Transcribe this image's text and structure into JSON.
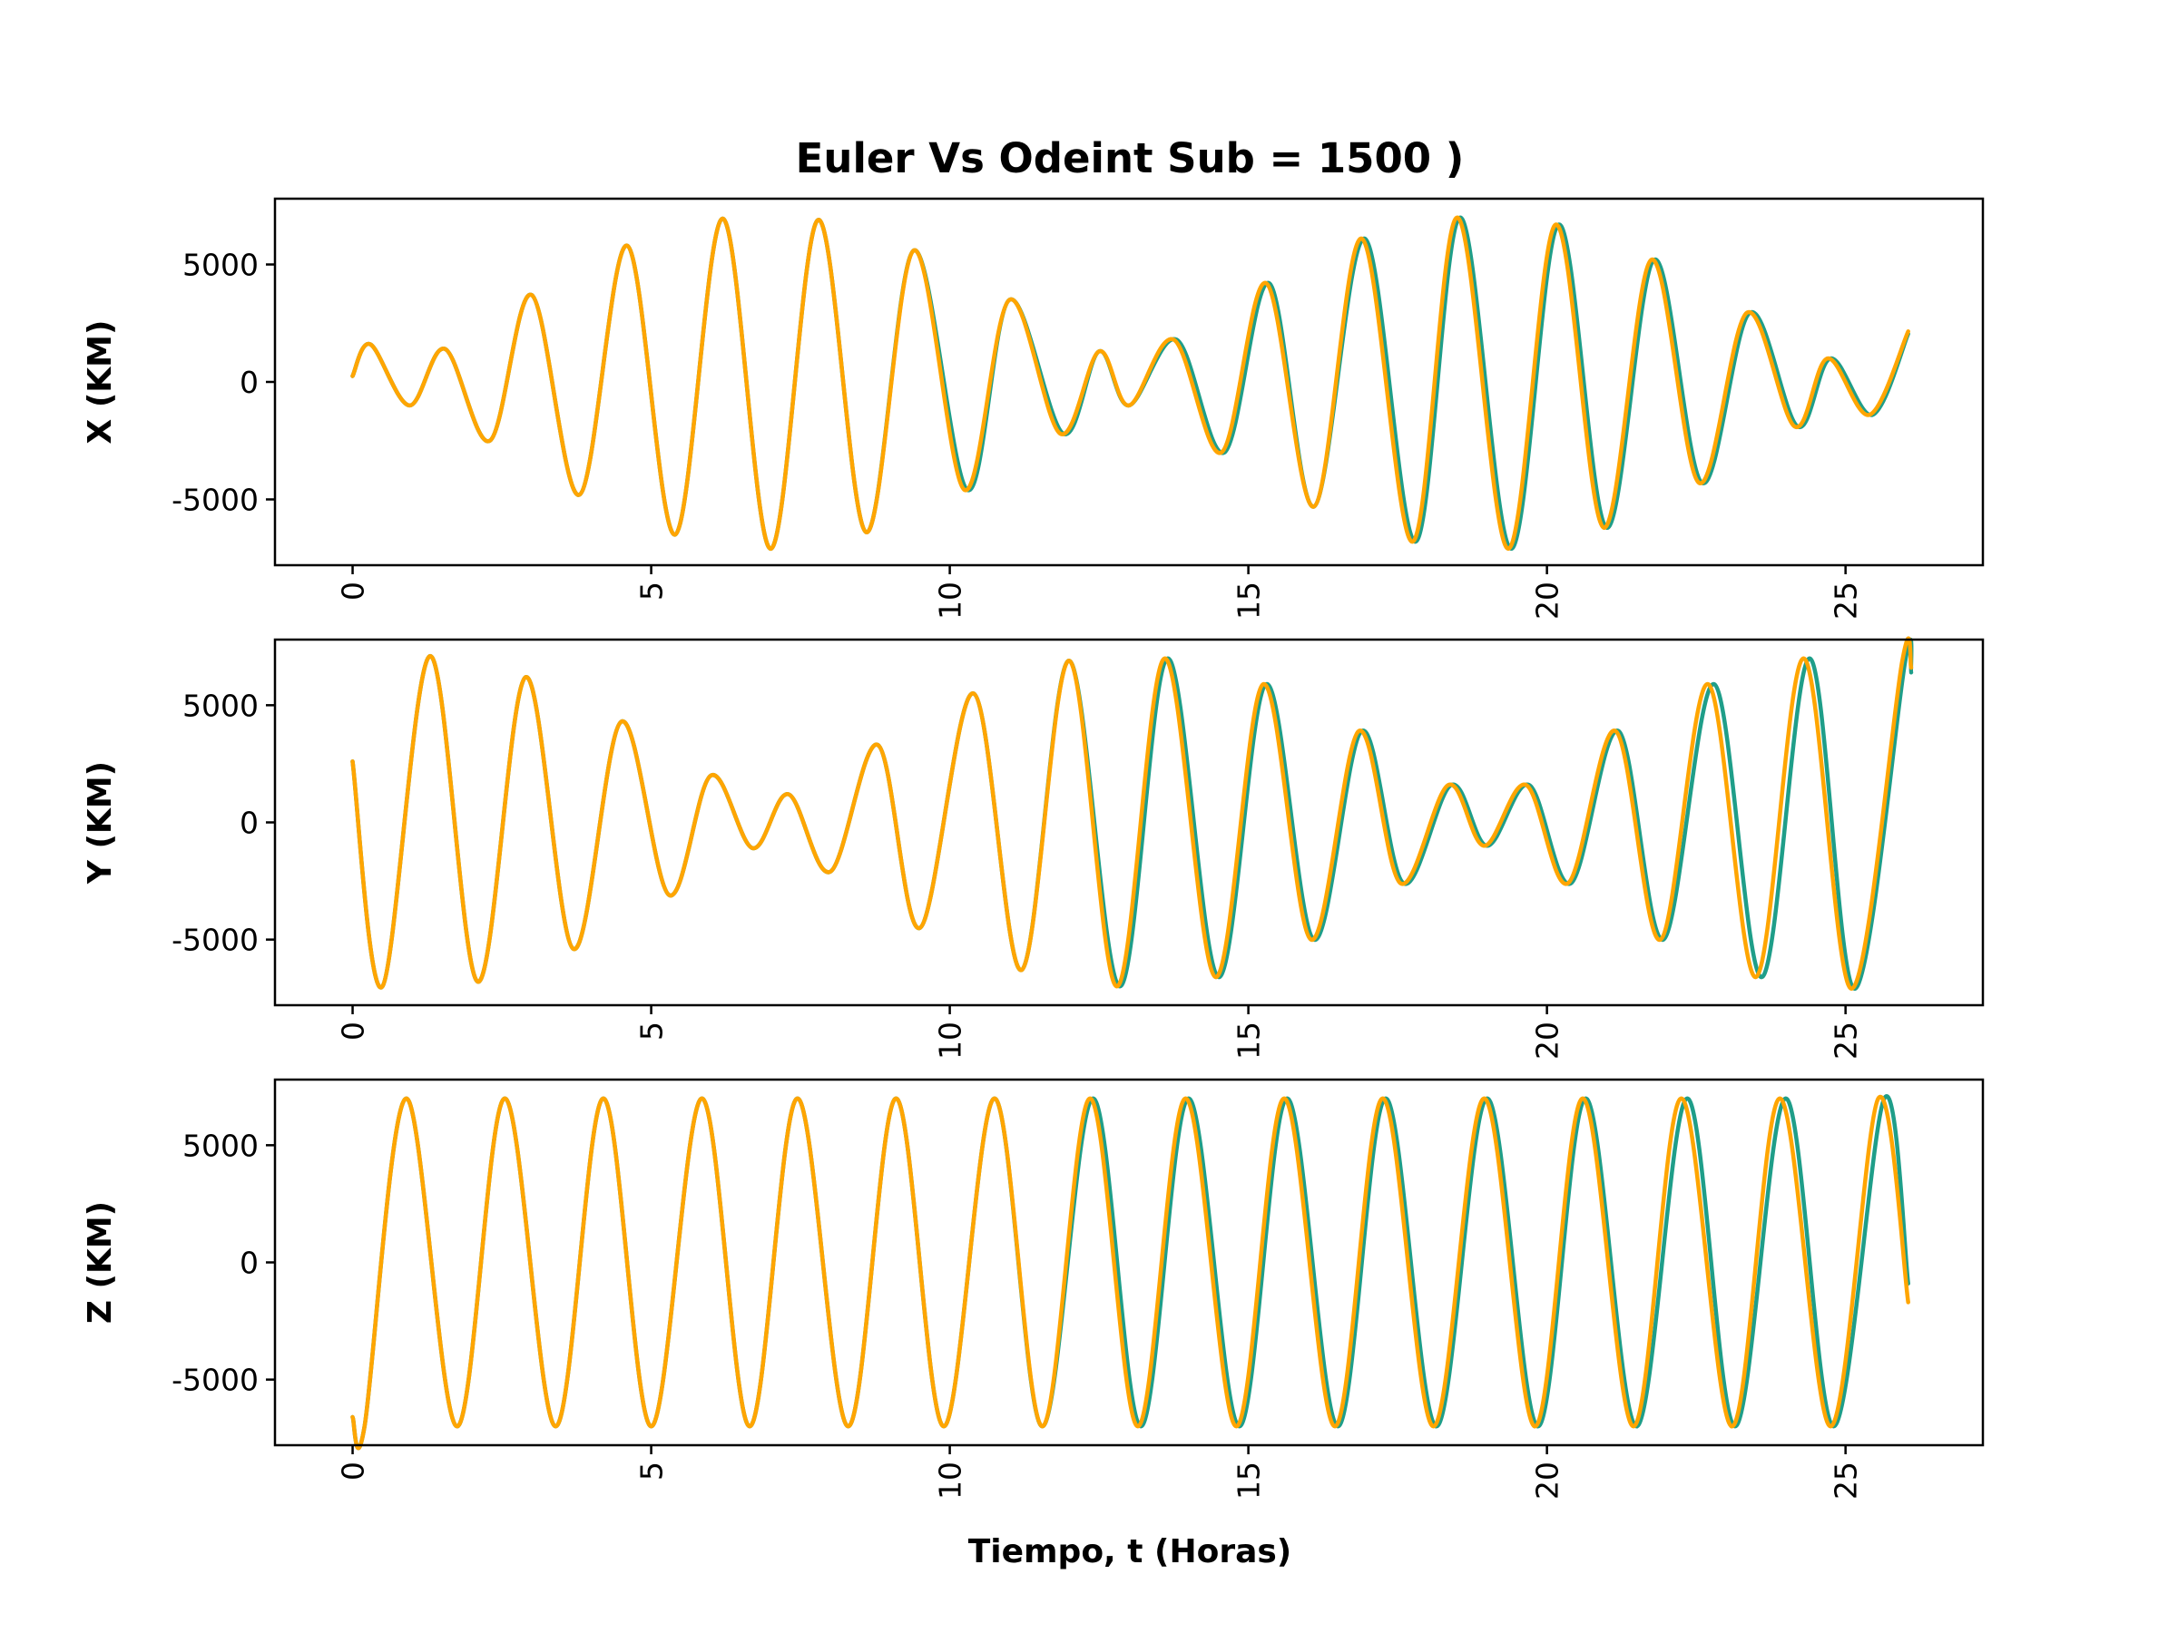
{
  "chart_data": {
    "type": "line",
    "title": "Euler Vs Odeint Sub = 1500 )",
    "xlabel": "Tiempo, t (Horas)",
    "colors": {
      "odeint": "#1f9e89",
      "euler": "#ffa500"
    },
    "subplots": [
      {
        "ylabel": "X (KM)",
        "xlim": [
          -1.3,
          27.3
        ],
        "ylim": [
          -7800,
          7800
        ],
        "xticks": [
          0,
          5,
          10,
          15,
          20,
          25
        ],
        "yticks": [
          5000,
          0,
          -5000
        ],
        "ytick_labels": [
          "5000",
          "0",
          "-5000"
        ],
        "series": [
          {
            "color": "#1f9e89",
            "points": [
              [
                0,
                250
              ],
              [
                0.3,
                1600
              ],
              [
                0.95,
                -1000
              ],
              [
                1.55,
                1400
              ],
              [
                2.3,
                -2500
              ],
              [
                3.0,
                3700
              ],
              [
                3.8,
                -4800
              ],
              [
                4.6,
                5800
              ],
              [
                5.4,
                -6500
              ],
              [
                6.2,
                6950
              ],
              [
                7.0,
                -7100
              ],
              [
                7.8,
                6900
              ],
              [
                8.6,
                -6400
              ],
              [
                9.4,
                5600
              ],
              [
                10.3,
                -4600
              ],
              [
                11.0,
                3500
              ],
              [
                11.9,
                -2200
              ],
              [
                12.5,
                1300
              ],
              [
                13.0,
                -1000
              ],
              [
                13.8,
                1800
              ],
              [
                14.6,
                -3000
              ],
              [
                15.35,
                4200
              ],
              [
                16.1,
                -5300
              ],
              [
                16.95,
                6100
              ],
              [
                17.8,
                -6800
              ],
              [
                18.55,
                7000
              ],
              [
                19.4,
                -7100
              ],
              [
                20.2,
                6700
              ],
              [
                21.0,
                -6200
              ],
              [
                21.8,
                5200
              ],
              [
                22.6,
                -4300
              ],
              [
                23.4,
                2950
              ],
              [
                24.2,
                -1900
              ],
              [
                24.75,
                1000
              ],
              [
                25.45,
                -1400
              ],
              [
                26.05,
                2050
              ]
            ]
          },
          {
            "color": "#ffa500",
            "points": [
              [
                0,
                250
              ],
              [
                0.3,
                1600
              ],
              [
                0.95,
                -1000
              ],
              [
                1.55,
                1400
              ],
              [
                2.3,
                -2500
              ],
              [
                3.0,
                3700
              ],
              [
                3.8,
                -4800
              ],
              [
                4.6,
                5800
              ],
              [
                5.4,
                -6500
              ],
              [
                6.2,
                6950
              ],
              [
                7.0,
                -7100
              ],
              [
                7.8,
                6900
              ],
              [
                8.6,
                -6400
              ],
              [
                9.4,
                5600
              ],
              [
                10.25,
                -4600
              ],
              [
                11.0,
                3500
              ],
              [
                11.85,
                -2200
              ],
              [
                12.5,
                1300
              ],
              [
                13.0,
                -1000
              ],
              [
                13.75,
                1800
              ],
              [
                14.55,
                -3000
              ],
              [
                15.3,
                4200
              ],
              [
                16.1,
                -5300
              ],
              [
                16.9,
                6100
              ],
              [
                17.75,
                -6800
              ],
              [
                18.5,
                7000
              ],
              [
                19.35,
                -7100
              ],
              [
                20.15,
                6700
              ],
              [
                20.95,
                -6200
              ],
              [
                21.75,
                5200
              ],
              [
                22.55,
                -4300
              ],
              [
                23.35,
                2950
              ],
              [
                24.15,
                -1900
              ],
              [
                24.7,
                1000
              ],
              [
                25.4,
                -1400
              ],
              [
                26.05,
                2150
              ]
            ]
          }
        ]
      },
      {
        "ylabel": "Y (KM)",
        "xlim": [
          -1.3,
          27.3
        ],
        "ylim": [
          -7800,
          7800
        ],
        "xticks": [
          0,
          5,
          10,
          15,
          20,
          25
        ],
        "yticks": [
          5000,
          0,
          -5000
        ],
        "ytick_labels": [
          "5000",
          "0",
          "-5000"
        ],
        "series": [
          {
            "color": "#1f9e89",
            "points": [
              [
                0,
                2600
              ],
              [
                0.5,
                -7000
              ],
              [
                1.3,
                7100
              ],
              [
                2.1,
                -6800
              ],
              [
                2.9,
                6200
              ],
              [
                3.7,
                -5400
              ],
              [
                4.5,
                4300
              ],
              [
                5.3,
                -3100
              ],
              [
                6.0,
                2000
              ],
              [
                6.7,
                -1100
              ],
              [
                7.3,
                1200
              ],
              [
                8.0,
                -2100
              ],
              [
                8.8,
                3300
              ],
              [
                9.5,
                -4500
              ],
              [
                10.4,
                5500
              ],
              [
                11.2,
                -6300
              ],
              [
                12.0,
                6900
              ],
              [
                12.85,
                -7000
              ],
              [
                13.65,
                7000
              ],
              [
                14.5,
                -6600
              ],
              [
                15.3,
                5900
              ],
              [
                16.1,
                -5000
              ],
              [
                16.9,
                3900
              ],
              [
                17.6,
                -2600
              ],
              [
                18.4,
                1600
              ],
              [
                19.0,
                -1000
              ],
              [
                19.7,
                1600
              ],
              [
                20.4,
                -2600
              ],
              [
                21.2,
                3900
              ],
              [
                21.95,
                -5000
              ],
              [
                22.8,
                5900
              ],
              [
                23.6,
                -6600
              ],
              [
                24.4,
                7000
              ],
              [
                25.15,
                -7100
              ],
              [
                26.0,
                6900
              ],
              [
                26.1,
                6400
              ]
            ]
          },
          {
            "color": "#ffa500",
            "points": [
              [
                0,
                2600
              ],
              [
                0.5,
                -7000
              ],
              [
                1.3,
                7100
              ],
              [
                2.1,
                -6800
              ],
              [
                2.9,
                6200
              ],
              [
                3.7,
                -5400
              ],
              [
                4.5,
                4300
              ],
              [
                5.3,
                -3100
              ],
              [
                6.0,
                2000
              ],
              [
                6.7,
                -1100
              ],
              [
                7.3,
                1200
              ],
              [
                8.0,
                -2100
              ],
              [
                8.8,
                3300
              ],
              [
                9.5,
                -4500
              ],
              [
                10.4,
                5500
              ],
              [
                11.2,
                -6300
              ],
              [
                12.0,
                6900
              ],
              [
                12.8,
                -7000
              ],
              [
                13.6,
                7000
              ],
              [
                14.45,
                -6600
              ],
              [
                15.25,
                5900
              ],
              [
                16.05,
                -5000
              ],
              [
                16.85,
                3900
              ],
              [
                17.55,
                -2600
              ],
              [
                18.35,
                1600
              ],
              [
                18.95,
                -1000
              ],
              [
                19.65,
                1600
              ],
              [
                20.35,
                -2600
              ],
              [
                21.15,
                3900
              ],
              [
                21.9,
                -5000
              ],
              [
                22.7,
                5900
              ],
              [
                23.5,
                -6600
              ],
              [
                24.3,
                7000
              ],
              [
                25.1,
                -7100
              ],
              [
                25.95,
                6900
              ],
              [
                26.1,
                6600
              ]
            ]
          }
        ]
      },
      {
        "ylabel": "Z (KM)",
        "xlim": [
          -1.3,
          27.3
        ],
        "ylim": [
          -7800,
          7800
        ],
        "xticks": [
          0,
          5,
          10,
          15,
          20,
          25
        ],
        "yticks": [
          5000,
          0,
          -5000
        ],
        "ytick_labels": [
          "5000",
          "0",
          "-5000"
        ],
        "series": [
          {
            "color": "#1f9e89",
            "points": [
              [
                0,
                -6600
              ],
              [
                0.2,
                -7000
              ],
              [
                0.9,
                7000
              ],
              [
                1.75,
                -7000
              ],
              [
                2.55,
                7000
              ],
              [
                3.4,
                -7000
              ],
              [
                4.2,
                7000
              ],
              [
                5.0,
                -7000
              ],
              [
                5.85,
                7000
              ],
              [
                6.65,
                -7000
              ],
              [
                7.45,
                7000
              ],
              [
                8.3,
                -7000
              ],
              [
                9.1,
                7000
              ],
              [
                9.9,
                -7000
              ],
              [
                10.75,
                7000
              ],
              [
                11.55,
                -7000
              ],
              [
                12.4,
                7000
              ],
              [
                13.2,
                -7000
              ],
              [
                14.0,
                7000
              ],
              [
                14.85,
                -7000
              ],
              [
                15.65,
                7000
              ],
              [
                16.5,
                -7000
              ],
              [
                17.3,
                7000
              ],
              [
                18.15,
                -7000
              ],
              [
                19.0,
                7000
              ],
              [
                19.85,
                -7000
              ],
              [
                20.65,
                7000
              ],
              [
                21.5,
                -7000
              ],
              [
                22.35,
                7000
              ],
              [
                23.15,
                -7000
              ],
              [
                24.0,
                7000
              ],
              [
                24.8,
                -7000
              ],
              [
                25.65,
                7000
              ],
              [
                26.05,
                -900
              ]
            ]
          },
          {
            "color": "#ffa500",
            "points": [
              [
                0,
                -6600
              ],
              [
                0.2,
                -7000
              ],
              [
                0.9,
                7000
              ],
              [
                1.75,
                -7000
              ],
              [
                2.55,
                7000
              ],
              [
                3.4,
                -7000
              ],
              [
                4.2,
                7000
              ],
              [
                5.0,
                -7000
              ],
              [
                5.85,
                7000
              ],
              [
                6.65,
                -7000
              ],
              [
                7.45,
                7000
              ],
              [
                8.3,
                -7000
              ],
              [
                9.1,
                7000
              ],
              [
                9.9,
                -7000
              ],
              [
                10.75,
                7000
              ],
              [
                11.55,
                -7000
              ],
              [
                12.35,
                7000
              ],
              [
                13.15,
                -7000
              ],
              [
                13.95,
                7000
              ],
              [
                14.8,
                -7000
              ],
              [
                15.6,
                7000
              ],
              [
                16.45,
                -7000
              ],
              [
                17.25,
                7000
              ],
              [
                18.1,
                -7000
              ],
              [
                18.95,
                7000
              ],
              [
                19.8,
                -7000
              ],
              [
                20.6,
                7000
              ],
              [
                21.45,
                -7000
              ],
              [
                22.25,
                7000
              ],
              [
                23.1,
                -7000
              ],
              [
                23.9,
                7000
              ],
              [
                24.75,
                -7000
              ],
              [
                25.55,
                7000
              ],
              [
                26.05,
                -1700
              ]
            ]
          }
        ]
      }
    ]
  }
}
